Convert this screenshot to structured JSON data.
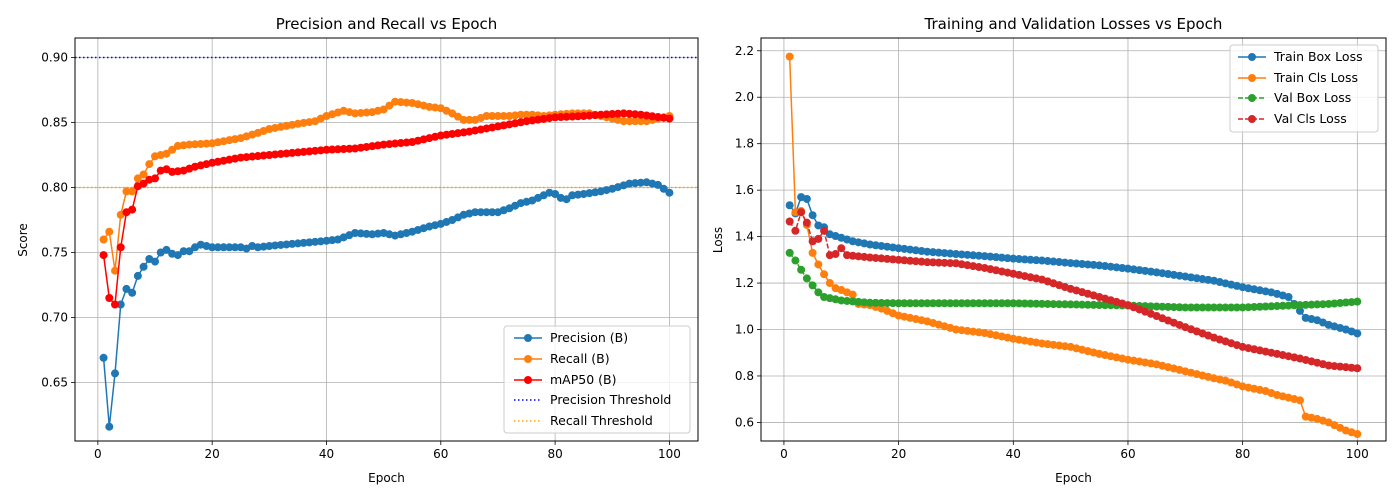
{
  "chart_data": [
    {
      "type": "line",
      "title": "Precision and Recall vs Epoch",
      "xlabel": "Epoch",
      "ylabel": "Score",
      "xlim": [
        -4,
        105
      ],
      "ylim": [
        0.605,
        0.915
      ],
      "xticks": [
        0,
        20,
        40,
        60,
        80,
        100
      ],
      "yticks": [
        0.65,
        0.7,
        0.75,
        0.8,
        0.85,
        0.9
      ],
      "ytick_labels": [
        "0.65",
        "0.70",
        "0.75",
        "0.80",
        "0.85",
        "0.90"
      ],
      "grid": true,
      "legend_position": "lower-right",
      "x_anchors": [
        1,
        100
      ],
      "series": [
        {
          "name": "Precision (B)",
          "color": "#1f77b4",
          "anchors": [
            [
              1,
              0.669
            ],
            [
              2,
              0.616
            ],
            [
              3,
              0.657
            ],
            [
              4,
              0.71
            ],
            [
              5,
              0.722
            ],
            [
              6,
              0.719
            ],
            [
              7,
              0.732
            ],
            [
              8,
              0.739
            ],
            [
              9,
              0.745
            ],
            [
              10,
              0.743
            ],
            [
              11,
              0.75
            ],
            [
              12,
              0.752
            ],
            [
              13,
              0.749
            ],
            [
              14,
              0.748
            ],
            [
              15,
              0.751
            ],
            [
              16,
              0.751
            ],
            [
              17,
              0.754
            ],
            [
              18,
              0.756
            ],
            [
              20,
              0.754
            ],
            [
              25,
              0.754
            ],
            [
              26,
              0.753
            ],
            [
              27,
              0.755
            ],
            [
              28,
              0.754
            ],
            [
              30,
              0.755
            ],
            [
              35,
              0.757
            ],
            [
              40,
              0.759
            ],
            [
              42,
              0.76
            ],
            [
              45,
              0.765
            ],
            [
              48,
              0.764
            ],
            [
              50,
              0.765
            ],
            [
              52,
              0.763
            ],
            [
              55,
              0.766
            ],
            [
              58,
              0.77
            ],
            [
              60,
              0.772
            ],
            [
              62,
              0.775
            ],
            [
              64,
              0.779
            ],
            [
              66,
              0.781
            ],
            [
              70,
              0.781
            ],
            [
              72,
              0.784
            ],
            [
              74,
              0.788
            ],
            [
              76,
              0.79
            ],
            [
              78,
              0.794
            ],
            [
              79,
              0.796
            ],
            [
              80,
              0.795
            ],
            [
              81,
              0.792
            ],
            [
              82,
              0.791
            ],
            [
              83,
              0.794
            ],
            [
              85,
              0.795
            ],
            [
              88,
              0.797
            ],
            [
              90,
              0.799
            ],
            [
              93,
              0.803
            ],
            [
              96,
              0.804
            ],
            [
              98,
              0.802
            ],
            [
              100,
              0.796
            ]
          ]
        },
        {
          "name": "Recall (B)",
          "color": "#ff7f0e",
          "anchors": [
            [
              1,
              0.76
            ],
            [
              2,
              0.766
            ],
            [
              3,
              0.736
            ],
            [
              4,
              0.779
            ],
            [
              5,
              0.797
            ],
            [
              6,
              0.797
            ],
            [
              7,
              0.807
            ],
            [
              8,
              0.81
            ],
            [
              9,
              0.818
            ],
            [
              10,
              0.824
            ],
            [
              12,
              0.826
            ],
            [
              13,
              0.829
            ],
            [
              14,
              0.832
            ],
            [
              16,
              0.833
            ],
            [
              20,
              0.834
            ],
            [
              25,
              0.838
            ],
            [
              28,
              0.842
            ],
            [
              30,
              0.845
            ],
            [
              35,
              0.849
            ],
            [
              38,
              0.851
            ],
            [
              40,
              0.855
            ],
            [
              43,
              0.859
            ],
            [
              45,
              0.857
            ],
            [
              48,
              0.858
            ],
            [
              50,
              0.86
            ],
            [
              52,
              0.866
            ],
            [
              55,
              0.865
            ],
            [
              58,
              0.862
            ],
            [
              60,
              0.861
            ],
            [
              62,
              0.857
            ],
            [
              64,
              0.852
            ],
            [
              66,
              0.852
            ],
            [
              68,
              0.855
            ],
            [
              70,
              0.855
            ],
            [
              72,
              0.855
            ],
            [
              74,
              0.856
            ],
            [
              76,
              0.856
            ],
            [
              78,
              0.855
            ],
            [
              80,
              0.856
            ],
            [
              83,
              0.857
            ],
            [
              86,
              0.857
            ],
            [
              88,
              0.855
            ],
            [
              90,
              0.853
            ],
            [
              92,
              0.851
            ],
            [
              94,
              0.851
            ],
            [
              96,
              0.851
            ],
            [
              98,
              0.853
            ],
            [
              100,
              0.855
            ]
          ]
        },
        {
          "name": "mAP50 (B)",
          "color": "#ff0000",
          "anchors": [
            [
              1,
              0.748
            ],
            [
              2,
              0.715
            ],
            [
              3,
              0.71
            ],
            [
              4,
              0.754
            ],
            [
              5,
              0.781
            ],
            [
              6,
              0.783
            ],
            [
              7,
              0.801
            ],
            [
              8,
              0.803
            ],
            [
              9,
              0.806
            ],
            [
              10,
              0.807
            ],
            [
              11,
              0.813
            ],
            [
              12,
              0.814
            ],
            [
              13,
              0.812
            ],
            [
              15,
              0.813
            ],
            [
              17,
              0.816
            ],
            [
              20,
              0.819
            ],
            [
              25,
              0.823
            ],
            [
              30,
              0.825
            ],
            [
              35,
              0.827
            ],
            [
              40,
              0.829
            ],
            [
              45,
              0.83
            ],
            [
              50,
              0.833
            ],
            [
              55,
              0.835
            ],
            [
              60,
              0.84
            ],
            [
              65,
              0.843
            ],
            [
              70,
              0.847
            ],
            [
              75,
              0.851
            ],
            [
              80,
              0.854
            ],
            [
              85,
              0.855
            ],
            [
              88,
              0.856
            ],
            [
              92,
              0.857
            ],
            [
              95,
              0.856
            ],
            [
              100,
              0.853
            ]
          ]
        }
      ],
      "thresholds": [
        {
          "name": "Precision Threshold",
          "value": 0.9,
          "color": "#0000ff",
          "style": "dotted"
        },
        {
          "name": "Recall Threshold",
          "value": 0.8,
          "color": "#ffa500",
          "style": "dotted"
        }
      ]
    },
    {
      "type": "line",
      "title": "Training and Validation Losses vs Epoch",
      "xlabel": "Epoch",
      "ylabel": "Loss",
      "xlim": [
        -4,
        105
      ],
      "ylim": [
        0.52,
        2.255
      ],
      "xticks": [
        0,
        20,
        40,
        60,
        80,
        100
      ],
      "yticks": [
        0.6,
        0.8,
        1.0,
        1.2,
        1.4,
        1.6,
        1.8,
        2.0,
        2.2
      ],
      "ytick_labels": [
        "0.6",
        "0.8",
        "1.0",
        "1.2",
        "1.4",
        "1.6",
        "1.8",
        "2.0",
        "2.2"
      ],
      "grid": true,
      "legend_position": "upper-right",
      "x_anchors": [
        1,
        100
      ],
      "series": [
        {
          "name": "Train Box Loss",
          "color": "#1f77b4",
          "dashed": false,
          "anchors": [
            [
              1,
              1.535
            ],
            [
              2,
              1.5
            ],
            [
              3,
              1.57
            ],
            [
              4,
              1.562
            ],
            [
              5,
              1.492
            ],
            [
              6,
              1.448
            ],
            [
              7,
              1.44
            ],
            [
              8,
              1.41
            ],
            [
              10,
              1.395
            ],
            [
              12,
              1.38
            ],
            [
              15,
              1.366
            ],
            [
              20,
              1.35
            ],
            [
              25,
              1.335
            ],
            [
              30,
              1.325
            ],
            [
              35,
              1.316
            ],
            [
              40,
              1.305
            ],
            [
              45,
              1.297
            ],
            [
              50,
              1.286
            ],
            [
              55,
              1.276
            ],
            [
              60,
              1.262
            ],
            [
              65,
              1.246
            ],
            [
              70,
              1.228
            ],
            [
              75,
              1.21
            ],
            [
              80,
              1.182
            ],
            [
              85,
              1.16
            ],
            [
              88,
              1.14
            ],
            [
              90,
              1.08
            ],
            [
              91,
              1.05
            ],
            [
              93,
              1.04
            ],
            [
              95,
              1.02
            ],
            [
              98,
              1.0
            ],
            [
              100,
              0.983
            ]
          ]
        },
        {
          "name": "Train Cls Loss",
          "color": "#ff7f0e",
          "dashed": false,
          "anchors": [
            [
              1,
              2.175
            ],
            [
              2,
              1.505
            ],
            [
              3,
              1.51
            ],
            [
              4,
              1.45
            ],
            [
              5,
              1.33
            ],
            [
              6,
              1.28
            ],
            [
              7,
              1.238
            ],
            [
              8,
              1.2
            ],
            [
              9,
              1.178
            ],
            [
              10,
              1.17
            ],
            [
              11,
              1.16
            ],
            [
              12,
              1.15
            ],
            [
              13,
              1.11
            ],
            [
              15,
              1.105
            ],
            [
              17,
              1.09
            ],
            [
              20,
              1.06
            ],
            [
              25,
              1.035
            ],
            [
              30,
              1.0
            ],
            [
              35,
              0.985
            ],
            [
              40,
              0.96
            ],
            [
              45,
              0.94
            ],
            [
              50,
              0.925
            ],
            [
              55,
              0.895
            ],
            [
              60,
              0.87
            ],
            [
              65,
              0.85
            ],
            [
              70,
              0.82
            ],
            [
              75,
              0.79
            ],
            [
              77,
              0.78
            ],
            [
              80,
              0.755
            ],
            [
              84,
              0.735
            ],
            [
              86,
              0.718
            ],
            [
              90,
              0.695
            ],
            [
              91,
              0.625
            ],
            [
              93,
              0.615
            ],
            [
              95,
              0.6
            ],
            [
              98,
              0.565
            ],
            [
              100,
              0.55
            ]
          ]
        },
        {
          "name": "Val Box Loss",
          "color": "#2ca02c",
          "dashed": true,
          "anchors": [
            [
              1,
              1.33
            ],
            [
              2,
              1.297
            ],
            [
              3,
              1.257
            ],
            [
              4,
              1.22
            ],
            [
              5,
              1.19
            ],
            [
              6,
              1.16
            ],
            [
              7,
              1.14
            ],
            [
              10,
              1.125
            ],
            [
              15,
              1.115
            ],
            [
              20,
              1.113
            ],
            [
              30,
              1.113
            ],
            [
              40,
              1.113
            ],
            [
              50,
              1.108
            ],
            [
              60,
              1.103
            ],
            [
              70,
              1.095
            ],
            [
              80,
              1.095
            ],
            [
              90,
              1.105
            ],
            [
              95,
              1.11
            ],
            [
              100,
              1.12
            ]
          ]
        },
        {
          "name": "Val Cls Loss",
          "color": "#d62728",
          "dashed": true,
          "anchors": [
            [
              1,
              1.465
            ],
            [
              2,
              1.425
            ],
            [
              3,
              1.505
            ],
            [
              4,
              1.46
            ],
            [
              5,
              1.38
            ],
            [
              6,
              1.39
            ],
            [
              7,
              1.425
            ],
            [
              8,
              1.32
            ],
            [
              9,
              1.325
            ],
            [
              10,
              1.35
            ],
            [
              11,
              1.32
            ],
            [
              15,
              1.31
            ],
            [
              20,
              1.3
            ],
            [
              25,
              1.29
            ],
            [
              30,
              1.285
            ],
            [
              35,
              1.265
            ],
            [
              40,
              1.24
            ],
            [
              45,
              1.215
            ],
            [
              50,
              1.175
            ],
            [
              55,
              1.14
            ],
            [
              60,
              1.105
            ],
            [
              65,
              1.058
            ],
            [
              70,
              1.01
            ],
            [
              75,
              0.965
            ],
            [
              80,
              0.925
            ],
            [
              85,
              0.9
            ],
            [
              90,
              0.875
            ],
            [
              95,
              0.845
            ],
            [
              100,
              0.833
            ]
          ]
        }
      ]
    }
  ]
}
